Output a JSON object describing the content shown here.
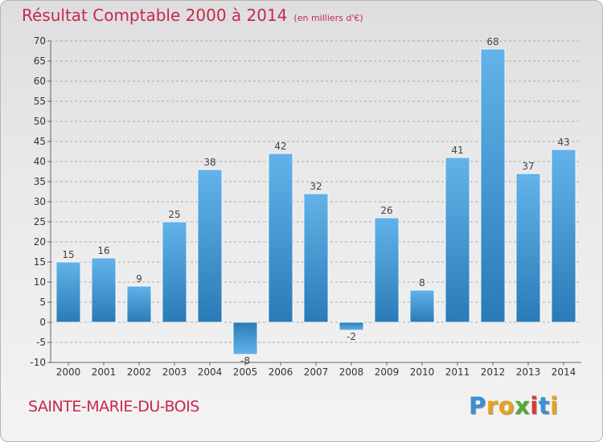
{
  "header": {
    "title": "Résultat Comptable 2000 à 2014",
    "subtitle": "(en milliers d'€)"
  },
  "footer": {
    "commune": "SAINTE-MARIE-DU-BOIS",
    "logo_text": "Proxiti"
  },
  "colors": {
    "title": "#c8284c",
    "bar_light": "#63b3ea",
    "bar_dark": "#2a7ab7",
    "grid": "#aaaaaa"
  },
  "chart_data": {
    "type": "bar",
    "title": "Résultat Comptable 2000 à 2014",
    "subtitle": "(en milliers d'€)",
    "xlabel": "",
    "ylabel": "",
    "categories": [
      "2000",
      "2001",
      "2002",
      "2003",
      "2004",
      "2005",
      "2006",
      "2007",
      "2008",
      "2009",
      "2010",
      "2011",
      "2012",
      "2013",
      "2014"
    ],
    "values": [
      15,
      16,
      9,
      25,
      38,
      -8,
      42,
      32,
      -2,
      26,
      8,
      41,
      68,
      37,
      43
    ],
    "ylim": [
      -10,
      70
    ],
    "yticks": [
      -10,
      -5,
      0,
      5,
      10,
      15,
      20,
      25,
      30,
      35,
      40,
      45,
      50,
      55,
      60,
      65,
      70
    ],
    "grid": "horizontal dashed"
  }
}
